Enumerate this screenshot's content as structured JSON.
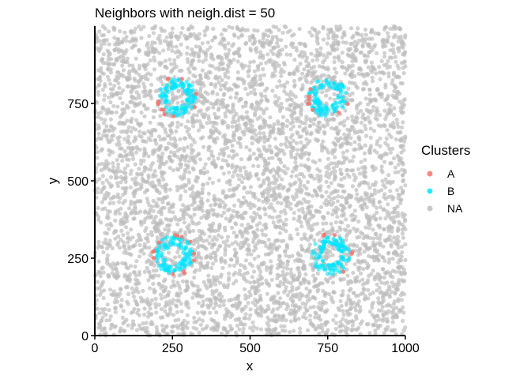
{
  "chart_data": {
    "type": "scatter",
    "title": "Neighbors with neigh.dist = 50",
    "xlabel": "x",
    "ylabel": "y",
    "xlim": [
      0,
      1000
    ],
    "ylim": [
      0,
      1000
    ],
    "x_ticks": [
      0,
      250,
      500,
      750,
      1000
    ],
    "y_ticks": [
      0,
      250,
      500,
      750
    ],
    "grid": false,
    "legend": {
      "title": "Clusters",
      "placement": "right",
      "entries": [
        {
          "label": "A",
          "color": "#f8766d"
        },
        {
          "label": "B",
          "color": "#00e5ff"
        },
        {
          "label": "NA",
          "color": "#bebebe"
        }
      ]
    },
    "series": [
      {
        "name": "NA",
        "color": "#bebebe",
        "point_count": 5000,
        "distribution": "uniform over plot area"
      },
      {
        "name": "B",
        "color": "#00e5ff",
        "rings": [
          {
            "center": [
              265,
              770
            ],
            "radius": 50
          },
          {
            "center": [
              750,
              770
            ],
            "radius": 50
          },
          {
            "center": [
              255,
              260
            ],
            "radius": 50
          },
          {
            "center": [
              760,
              260
            ],
            "radius": 50
          }
        ]
      },
      {
        "name": "A",
        "color": "#f8766d",
        "rings": [
          {
            "center": [
              265,
              770
            ],
            "radius": 65,
            "point_count": 12
          },
          {
            "center": [
              750,
              770
            ],
            "radius": 65,
            "point_count": 8
          },
          {
            "center": [
              255,
              260
            ],
            "radius": 65,
            "point_count": 13
          },
          {
            "center": [
              760,
              260
            ],
            "radius": 65,
            "point_count": 6
          }
        ]
      }
    ]
  }
}
